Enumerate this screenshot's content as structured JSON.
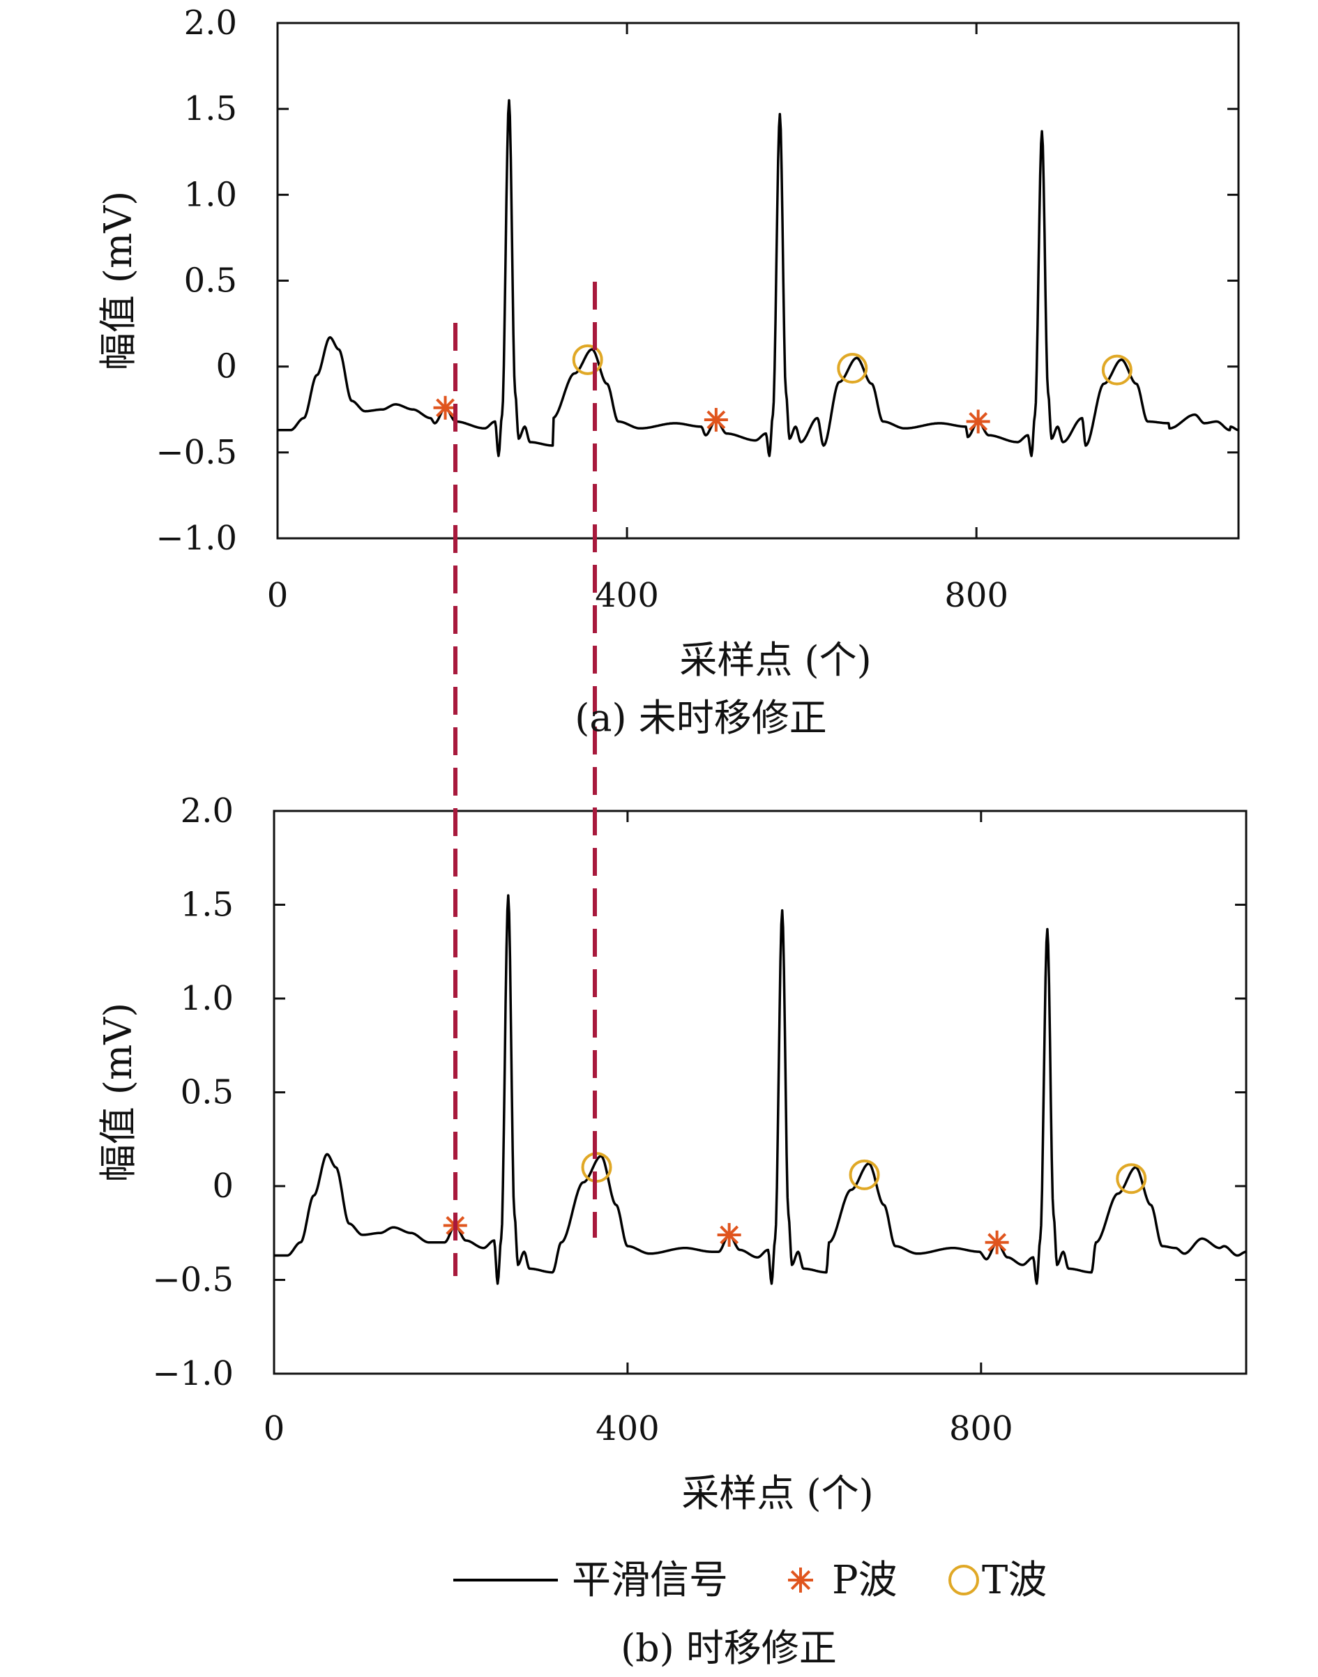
{
  "chart_data": [
    {
      "type": "line",
      "caption": "(a) 未时移修正",
      "xlabel": "采样点 (个)",
      "ylabel": "幅值 (mV)",
      "xlim": [
        0,
        1100
      ],
      "ylim": [
        -1.0,
        2.0
      ],
      "xticks": [
        0,
        400,
        800
      ],
      "yticks": [
        2.0,
        1.5,
        1.0,
        0.5,
        0,
        -0.5,
        -1.0
      ],
      "ytick_labels": [
        "2.0",
        "1.5",
        "1.0",
        "0.5",
        "0",
        "−0.5",
        "−1.0"
      ],
      "xtick_labels": [
        "0",
        "400",
        "800"
      ],
      "r_peaks": [
        [
          265,
          1.55
        ],
        [
          575,
          1.47
        ],
        [
          875,
          1.37
        ]
      ],
      "p_wave": [
        [
          192,
          -0.24
        ],
        [
          502,
          -0.31
        ],
        [
          802,
          -0.32
        ]
      ],
      "t_wave": [
        [
          355,
          0.04
        ],
        [
          658,
          -0.01
        ],
        [
          961,
          -0.02
        ]
      ]
    },
    {
      "type": "line",
      "caption": "(b) 时移修正",
      "xlabel": "采样点 (个)",
      "ylabel": "幅值 (mV)",
      "xlim": [
        0,
        1100
      ],
      "ylim": [
        -1.0,
        2.0
      ],
      "xticks": [
        0,
        400,
        800
      ],
      "yticks": [
        2.0,
        1.5,
        1.0,
        0.5,
        0,
        -0.5,
        -1.0
      ],
      "ytick_labels": [
        "2.0",
        "1.5",
        "1.0",
        "0.5",
        "0",
        "−0.5",
        "−1.0"
      ],
      "xtick_labels": [
        "0",
        "400",
        "800"
      ],
      "r_peaks": [
        [
          265,
          1.55
        ],
        [
          575,
          1.47
        ],
        [
          875,
          1.37
        ]
      ],
      "p_wave": [
        [
          205,
          -0.21
        ],
        [
          515,
          -0.26
        ],
        [
          818,
          -0.3
        ]
      ],
      "t_wave": [
        [
          365,
          0.1
        ],
        [
          668,
          0.06
        ],
        [
          970,
          0.04
        ]
      ]
    }
  ],
  "legend": {
    "signal_label": "平滑信号",
    "p_label": "P波",
    "t_label": "T波"
  },
  "colors": {
    "signal": "#000000",
    "p_wave": "#e0551e",
    "t_wave": "#e0a826",
    "guide": "#a8193c"
  },
  "guide_lines_x": [
    203,
    365
  ]
}
